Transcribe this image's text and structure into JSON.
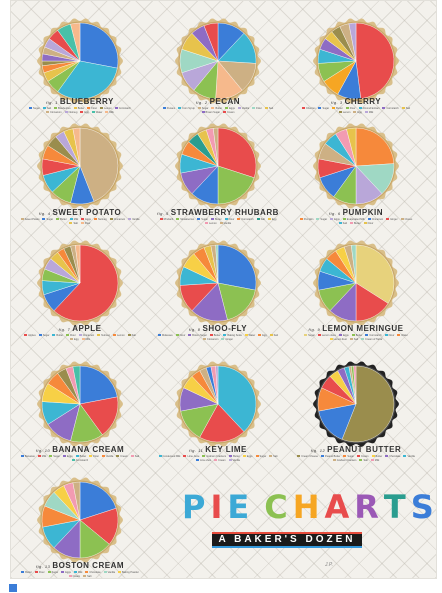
{
  "poster": {
    "title": "PIE CHARTS",
    "title_colors": [
      "#3ca9d6",
      "#e84c4c",
      "#3ca9d6",
      "#8cc152",
      "#f6a623",
      "#e84c4c",
      "#9b59b6",
      "#2a9d8f",
      "#3b7dd8"
    ],
    "subtitle": "A BAKER'S DOZEN",
    "signature": "J.P."
  },
  "palette": {
    "blue": "#3b7dd8",
    "cyan": "#3cb6d3",
    "green": "#8cc152",
    "red": "#e84c4c",
    "orange": "#f6893b",
    "yellow": "#f7d046",
    "purple": "#8e6cc4",
    "pink": "#f29bb2",
    "tan": "#cdb084",
    "olive": "#9a8d4d",
    "lavender": "#b9a7d9",
    "teal": "#48c0a8",
    "mint": "#9fd8c4",
    "peach": "#f6b98c",
    "gold": "#e7c34c",
    "navy": "#2c4a8c"
  },
  "chart_data": [
    {
      "type": "pie",
      "title": "BLUEBERRY",
      "fig": "fig. 1",
      "legend": [
        "Sugar",
        "Salt",
        "Blueberries",
        "Butter",
        "Flour",
        "Lemon",
        "Cornstarch",
        "Cinnamon",
        "Nutmeg",
        "Egg",
        "Water",
        "Milk"
      ],
      "values": [
        28,
        32,
        6,
        4,
        3,
        2,
        3,
        3,
        4,
        5,
        6,
        4
      ],
      "colors": [
        "#3b7dd8",
        "#3cb6d3",
        "#8cc152",
        "#e7c34c",
        "#f6893b",
        "#9a8d4d",
        "#8e6cc4",
        "#cdb084",
        "#b9a7d9",
        "#e84c4c",
        "#48c0a8",
        "#f6b98c"
      ]
    },
    {
      "type": "pie",
      "title": "PECAN",
      "fig": "fig. 2",
      "legend": [
        "Pecans",
        "Corn Syrup",
        "Sugar",
        "Butter",
        "Eggs",
        "Vanilla",
        "Flour",
        "Salt",
        "Brown Sugar",
        "Cream"
      ],
      "values": [
        12,
        14,
        13,
        12,
        10,
        9,
        10,
        8,
        6,
        6
      ],
      "colors": [
        "#3b7dd8",
        "#3cb6d3",
        "#cdb084",
        "#f6b98c",
        "#8cc152",
        "#b9a7d9",
        "#9fd8c4",
        "#e7c34c",
        "#8e6cc4",
        "#e84c4c"
      ]
    },
    {
      "type": "pie",
      "title": "CHERRY",
      "fig": "fig. 3",
      "legend": [
        "Cherries",
        "Sugar",
        "Butter",
        "Flour",
        "Almond Extract",
        "Cornstarch",
        "Salt",
        "Lemon",
        "Egg",
        "Milk"
      ],
      "values": [
        48,
        10,
        8,
        8,
        6,
        5,
        4,
        4,
        4,
        3
      ],
      "colors": [
        "#e84c4c",
        "#3b7dd8",
        "#f6a623",
        "#8cc152",
        "#3cb6d3",
        "#8e6cc4",
        "#e7c34c",
        "#9a8d4d",
        "#cdb084",
        "#b9a7d9"
      ]
    },
    {
      "type": "pie",
      "title": "SWEET POTATO",
      "fig": "fig. 4",
      "legend": [
        "Sweet Potato",
        "Sugar",
        "Butter",
        "Milk",
        "Eggs",
        "Nutmeg",
        "Cinnamon",
        "Vanilla",
        "Salt",
        "Flour"
      ],
      "values": [
        44,
        10,
        9,
        8,
        7,
        6,
        5,
        4,
        4,
        3
      ],
      "colors": [
        "#cdb084",
        "#3b7dd8",
        "#8cc152",
        "#3cb6d3",
        "#e84c4c",
        "#f6893b",
        "#9a8d4d",
        "#b9a7d9",
        "#e7c34c",
        "#f6b98c"
      ]
    },
    {
      "type": "pie",
      "title": "STRAWBERRY RHUBARB",
      "fig": "fig. 5",
      "legend": [
        "Rhubarb",
        "Strawberries",
        "Sugar",
        "Butter",
        "Flour",
        "Cornstarch",
        "Salt",
        "Egg",
        "Lemon",
        "Vanilla"
      ],
      "values": [
        30,
        20,
        12,
        10,
        8,
        6,
        5,
        4,
        3,
        2
      ],
      "colors": [
        "#e84c4c",
        "#8cc152",
        "#3b7dd8",
        "#8e6cc4",
        "#3cb6d3",
        "#f6893b",
        "#2a9d8f",
        "#e7c34c",
        "#f29bb2",
        "#cdb084"
      ]
    },
    {
      "type": "pie",
      "title": "PUMPKIN",
      "fig": "fig. 6",
      "legend": [
        "Pumpkin",
        "Sugar",
        "Eggs",
        "Evaporated Milk",
        "Cinnamon",
        "Ginger",
        "Cloves",
        "Salt",
        "Butter",
        "Flour"
      ],
      "values": [
        24,
        14,
        12,
        10,
        10,
        8,
        7,
        6,
        5,
        4
      ],
      "colors": [
        "#f6893b",
        "#9fd8c4",
        "#b9a7d9",
        "#8cc152",
        "#3b7dd8",
        "#e84c4c",
        "#cdb084",
        "#3cb6d3",
        "#f29bb2",
        "#e7c34c"
      ]
    },
    {
      "type": "pie",
      "title": "APPLE",
      "fig": "fig. 7",
      "legend": [
        "Apples",
        "Sugar",
        "Butter",
        "Flour",
        "Cinnamon",
        "Nutmeg",
        "Lemon",
        "Salt",
        "Egg",
        "Milk"
      ],
      "values": [
        62,
        8,
        6,
        5,
        5,
        4,
        3,
        3,
        2,
        2
      ],
      "colors": [
        "#e84c4c",
        "#3b7dd8",
        "#3cb6d3",
        "#8cc152",
        "#b9a7d9",
        "#e7c34c",
        "#f6893b",
        "#9a8d4d",
        "#cdb084",
        "#f6b98c"
      ]
    },
    {
      "type": "pie",
      "title": "SHOO-FLY",
      "fig": "fig. 8",
      "legend": [
        "Molasses",
        "Flour",
        "Brown Sugar",
        "Butter",
        "Baking Soda",
        "Water",
        "Egg",
        "Salt",
        "Cinnamon",
        "Ginger"
      ],
      "values": [
        28,
        18,
        16,
        12,
        8,
        7,
        5,
        3,
        2,
        1
      ],
      "colors": [
        "#3b7dd8",
        "#8cc152",
        "#8e6cc4",
        "#e84c4c",
        "#3cb6d3",
        "#f7d046",
        "#f6893b",
        "#e7c34c",
        "#cdb084",
        "#9fd8c4"
      ]
    },
    {
      "type": "pie",
      "title": "LEMON MERINGUE",
      "fig": "fig. 9",
      "legend": [
        "Sugar",
        "Lemon Juice",
        "Eggs",
        "Butter",
        "Cornstarch",
        "Flour",
        "Water",
        "Lemon Zest",
        "Salt",
        "Cream of Tartar"
      ],
      "values": [
        34,
        16,
        12,
        10,
        8,
        6,
        5,
        4,
        3,
        2
      ],
      "colors": [
        "#e7d27c",
        "#e84c4c",
        "#8e6cc4",
        "#8cc152",
        "#3b7dd8",
        "#3cb6d3",
        "#f6893b",
        "#f7d046",
        "#cdb084",
        "#9fd8c4"
      ]
    },
    {
      "type": "pie",
      "title": "BANANA CREAM",
      "fig": "fig. 10",
      "legend": [
        "Bananas",
        "Milk",
        "Sugar",
        "Eggs",
        "Butter",
        "Flour",
        "Vanilla",
        "Cream",
        "Salt",
        "Cornstarch"
      ],
      "values": [
        22,
        18,
        14,
        12,
        10,
        8,
        6,
        4,
        3,
        3
      ],
      "colors": [
        "#3b7dd8",
        "#e84c4c",
        "#8cc152",
        "#8e6cc4",
        "#3cb6d3",
        "#f7d046",
        "#f6893b",
        "#9a8d4d",
        "#f29bb2",
        "#48c0a8"
      ]
    },
    {
      "type": "pie",
      "title": "KEY LIME",
      "fig": "fig. 11",
      "legend": [
        "Condensed Milk",
        "Lime Juice",
        "Graham Crackers",
        "Butter",
        "Eggs",
        "Sugar",
        "Salt",
        "Lime Zest",
        "Cream",
        "Vanilla"
      ],
      "values": [
        38,
        20,
        14,
        10,
        6,
        4,
        3,
        2,
        2,
        1
      ],
      "colors": [
        "#3cb6d3",
        "#e84c4c",
        "#8cc152",
        "#8e6cc4",
        "#f7d046",
        "#f6893b",
        "#cdb084",
        "#3b7dd8",
        "#f29bb2",
        "#b9a7d9"
      ]
    },
    {
      "type": "pie",
      "title": "PEANUT BUTTER",
      "fig": "fig. 12",
      "legend": [
        "Cream Cheese",
        "Peanut Butter",
        "Sugar",
        "Cream",
        "Butter",
        "Chocolate",
        "Vanilla",
        "Graham Crackers",
        "Salt",
        "Milk"
      ],
      "values": [
        56,
        16,
        10,
        6,
        4,
        3,
        2,
        1,
        1,
        1
      ],
      "colors": [
        "#9a8d4d",
        "#3b7dd8",
        "#f6893b",
        "#e84c4c",
        "#f7d046",
        "#8e6cc4",
        "#3cb6d3",
        "#cdb084",
        "#8cc152",
        "#f29bb2"
      ]
    },
    {
      "type": "pie",
      "title": "BOSTON CREAM",
      "fig": "fig. 13",
      "legend": [
        "Butter",
        "Flour",
        "Sugar",
        "Eggs",
        "Milk",
        "Chocolate",
        "Vanilla",
        "Baking Powder",
        "Cream",
        "Salt"
      ],
      "values": [
        20,
        16,
        14,
        12,
        10,
        9,
        7,
        5,
        4,
        3
      ],
      "colors": [
        "#3b7dd8",
        "#e84c4c",
        "#8cc152",
        "#8e6cc4",
        "#3cb6d3",
        "#f6893b",
        "#9fd8c4",
        "#f7d046",
        "#f29bb2",
        "#cdb084"
      ]
    }
  ]
}
